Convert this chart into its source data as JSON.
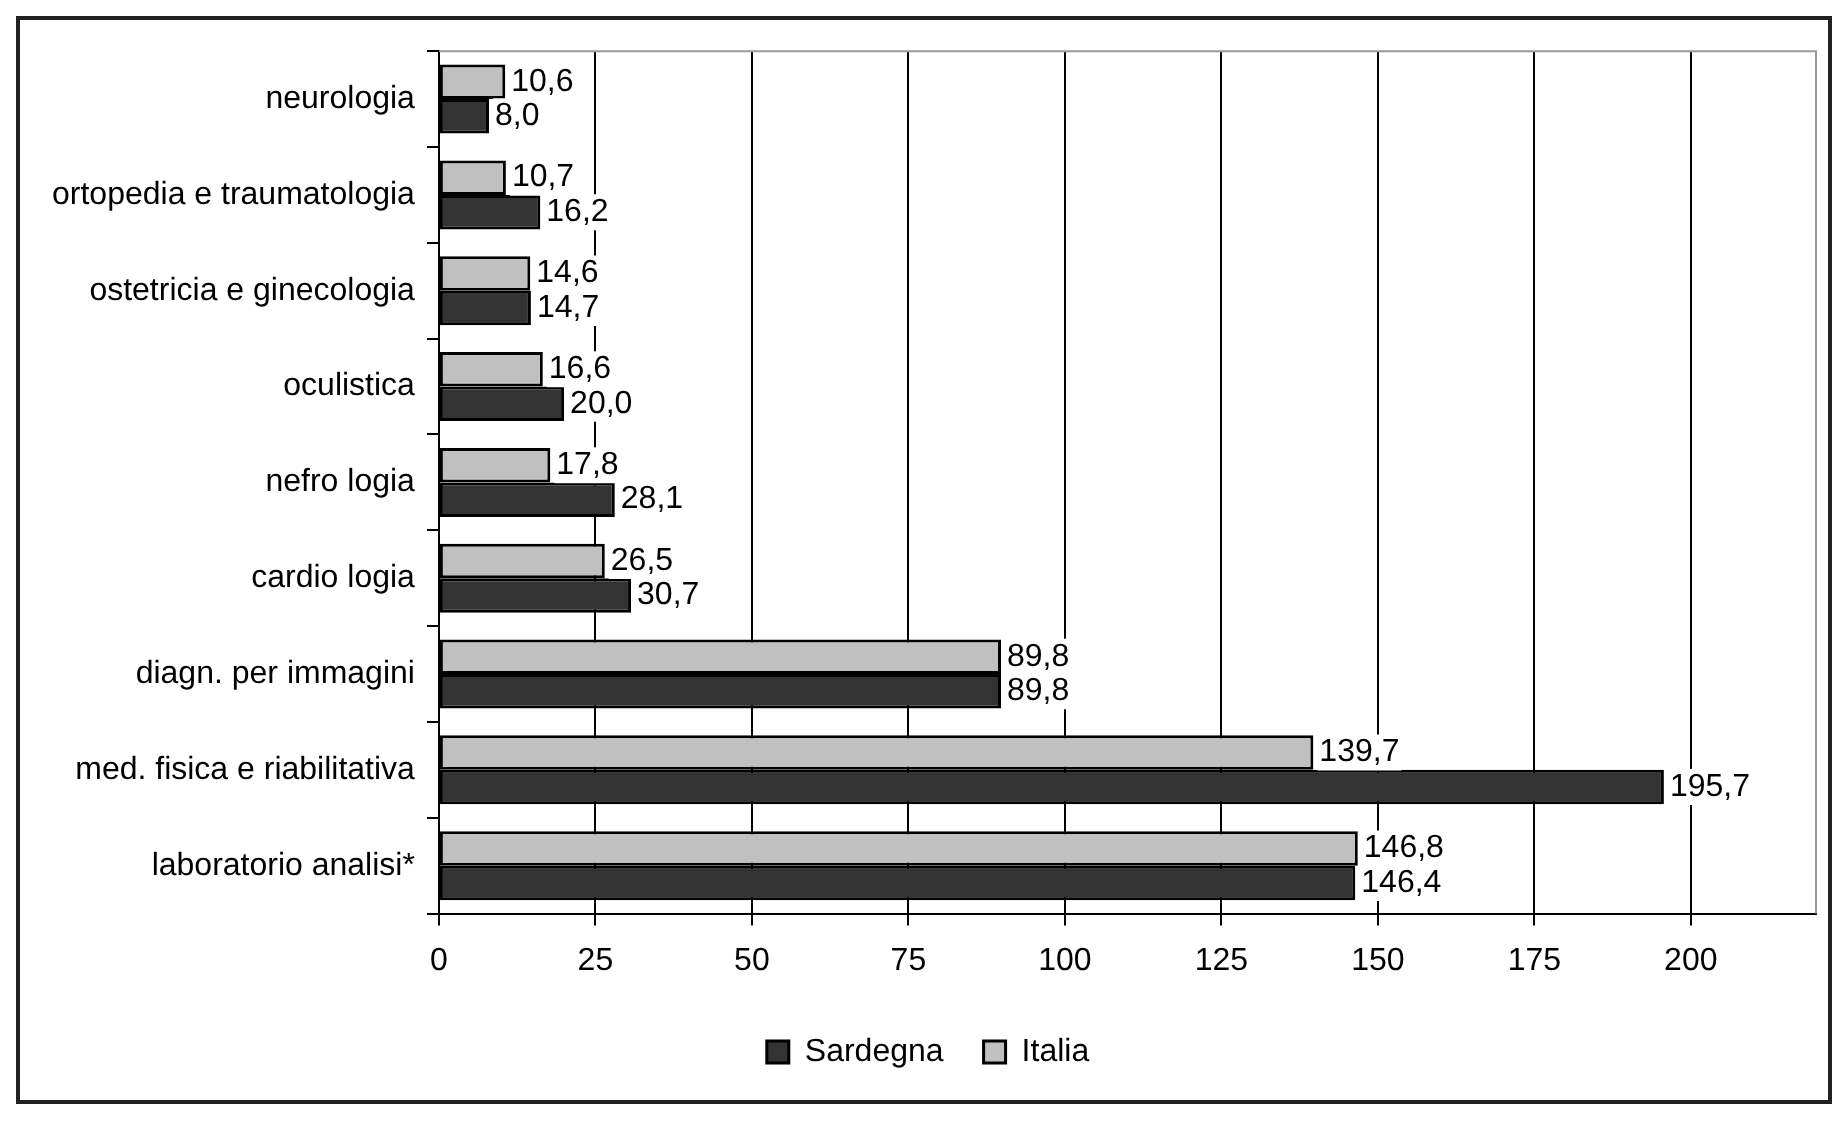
{
  "chart_data": {
    "type": "bar",
    "orientation": "horizontal",
    "categories": [
      "neurologia",
      "ortopedia e traumatologia",
      "ostetricia e ginecologia",
      "oculistica",
      "nefro logia",
      "cardio logia",
      "diagn. per immagini",
      "med. fisica e riabilitativa",
      "laboratorio analisi*"
    ],
    "series": [
      {
        "name": "Sardegna",
        "color": "#333333",
        "values": [
          8.0,
          16.2,
          14.7,
          20.0,
          28.1,
          30.7,
          89.8,
          195.7,
          146.4
        ],
        "value_labels": [
          "8,0",
          "16,2",
          "14,7",
          "20,0",
          "28,1",
          "30,7",
          "89,8",
          "195,7",
          "146,4"
        ]
      },
      {
        "name": "Italia",
        "color": "#c0c0c0",
        "values": [
          10.6,
          10.7,
          14.6,
          16.6,
          17.8,
          26.5,
          89.8,
          139.7,
          146.8
        ],
        "value_labels": [
          "10,6",
          "10,7",
          "14,6",
          "16,6",
          "17,8",
          "26,5",
          "89,8",
          "139,7",
          "146,8"
        ]
      }
    ],
    "xlim": [
      0,
      220
    ],
    "xticks": [
      0,
      25,
      50,
      75,
      100,
      125,
      150,
      175,
      200
    ],
    "grid": "x",
    "legend": "bottom"
  }
}
